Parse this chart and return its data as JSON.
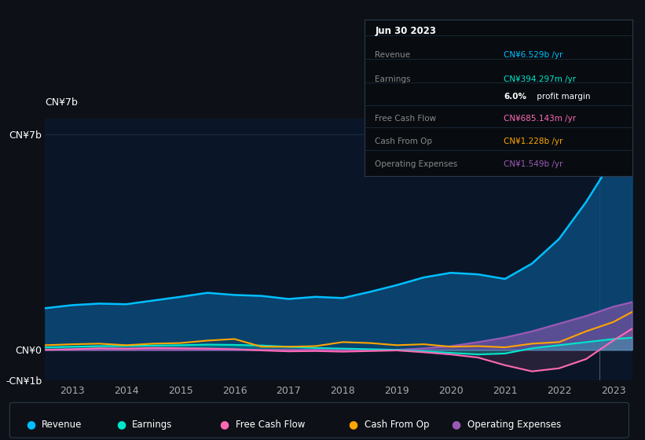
{
  "bg_color": "#0d1117",
  "plot_bg_color": "#0a1628",
  "grid_color": "#1e2d3d",
  "years": [
    2012.5,
    2013,
    2013.5,
    2014,
    2014.5,
    2015,
    2015.5,
    2016,
    2016.5,
    2017,
    2017.5,
    2018,
    2018.5,
    2019,
    2019.5,
    2020,
    2020.5,
    2021,
    2021.5,
    2022,
    2022.5,
    2023,
    2023.35
  ],
  "revenue": [
    1.35,
    1.45,
    1.5,
    1.48,
    1.6,
    1.72,
    1.85,
    1.78,
    1.75,
    1.65,
    1.72,
    1.68,
    1.88,
    2.1,
    2.35,
    2.5,
    2.45,
    2.3,
    2.8,
    3.6,
    4.8,
    6.2,
    6.529
  ],
  "earnings": [
    0.08,
    0.1,
    0.12,
    0.13,
    0.14,
    0.15,
    0.17,
    0.16,
    0.14,
    0.1,
    0.06,
    0.04,
    0.02,
    0.0,
    -0.05,
    -0.1,
    -0.15,
    -0.12,
    0.05,
    0.15,
    0.25,
    0.35,
    0.394
  ],
  "free_cash_flow": [
    0.0,
    0.02,
    0.05,
    0.04,
    0.06,
    0.05,
    0.04,
    0.02,
    -0.02,
    -0.05,
    -0.04,
    -0.06,
    -0.04,
    -0.02,
    -0.08,
    -0.15,
    -0.25,
    -0.5,
    -0.7,
    -0.6,
    -0.3,
    0.3,
    0.685
  ],
  "cash_from_op": [
    0.15,
    0.18,
    0.2,
    0.15,
    0.2,
    0.22,
    0.3,
    0.35,
    0.1,
    0.1,
    0.12,
    0.25,
    0.22,
    0.15,
    0.18,
    0.1,
    0.12,
    0.08,
    0.2,
    0.25,
    0.6,
    0.9,
    1.228
  ],
  "operating_expenses": [
    0.0,
    0.0,
    0.0,
    0.0,
    0.0,
    0.0,
    0.0,
    0.0,
    0.0,
    0.0,
    0.0,
    0.0,
    0.0,
    0.0,
    0.05,
    0.12,
    0.25,
    0.4,
    0.6,
    0.85,
    1.1,
    1.4,
    1.549
  ],
  "revenue_color": "#00bfff",
  "earnings_color": "#00e5cc",
  "free_cash_flow_color": "#ff69b4",
  "cash_from_op_color": "#ffa500",
  "operating_expenses_color": "#9b59b6",
  "ylim_min": -1.0,
  "ylim_max": 7.5,
  "xtick_years": [
    2013,
    2014,
    2015,
    2016,
    2017,
    2018,
    2019,
    2020,
    2021,
    2022,
    2023
  ],
  "tooltip_title": "Jun 30 2023",
  "legend_items": [
    {
      "label": "Revenue",
      "color": "#00bfff"
    },
    {
      "label": "Earnings",
      "color": "#00e5cc"
    },
    {
      "label": "Free Cash Flow",
      "color": "#ff69b4"
    },
    {
      "label": "Cash From Op",
      "color": "#ffa500"
    },
    {
      "label": "Operating Expenses",
      "color": "#9b59b6"
    }
  ]
}
